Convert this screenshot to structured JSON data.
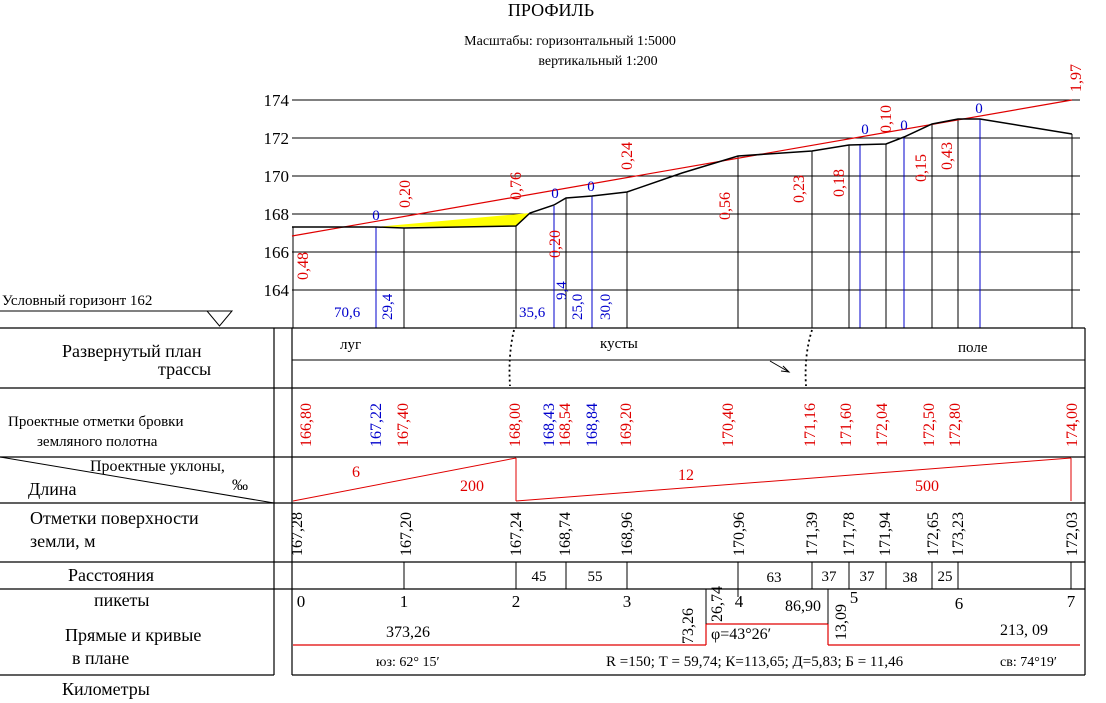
{
  "title": "ПРОФИЛЬ",
  "scales": {
    "horizontal": "Масштабы: горизонтальный  1:5000",
    "vertical": "вертикальный 1:200"
  },
  "datum_label": "Условный горизонт  162",
  "y_ticks": [
    "174",
    "172",
    "170",
    "168",
    "166",
    "164"
  ],
  "row_labels": {
    "plan_1": "Развернутый план",
    "plan_2": "трассы",
    "design_1": "Проектные отметки  бровки",
    "design_2": "земляного полотна",
    "slopes": "Проектные уклоны,",
    "permille": "‰",
    "length": "Длина",
    "surface_1": "Отметки поверхности",
    "surface_2": "земли, м",
    "distances": "Расстояния",
    "pickets": "пикеты",
    "curves_1": "Прямые и кривые",
    "curves_2": "в плане",
    "kilometers": "Километры"
  },
  "terrain": [
    "луг",
    "кусты",
    "поле"
  ],
  "design_marks": [
    {
      "text": "166,80",
      "color": "#e00000"
    },
    {
      "text": "167,22",
      "color": "#0000cc"
    },
    {
      "text": "167,40",
      "color": "#e00000"
    },
    {
      "text": "168,00",
      "color": "#e00000"
    },
    {
      "text": "168,43",
      "color": "#0000cc"
    },
    {
      "text": "168,54",
      "color": "#e00000"
    },
    {
      "text": "168,84",
      "color": "#0000cc"
    },
    {
      "text": "169,20",
      "color": "#e00000"
    },
    {
      "text": "170,40",
      "color": "#e00000"
    },
    {
      "text": "171,16",
      "color": "#e00000"
    },
    {
      "text": "171,60",
      "color": "#e00000"
    },
    {
      "text": "172,04",
      "color": "#e00000"
    },
    {
      "text": "172,50",
      "color": "#e00000"
    },
    {
      "text": "172,80",
      "color": "#e00000"
    },
    {
      "text": "174,00",
      "color": "#e00000"
    }
  ],
  "slopes": [
    {
      "grade": "6",
      "length": "200"
    },
    {
      "grade": "12",
      "length": "500"
    }
  ],
  "surface_marks": [
    "167,28",
    "167,20",
    "167,24",
    "168,74",
    "168,96",
    "170,96",
    "171,39",
    "171,78",
    "171,94",
    "172,65",
    "173,23",
    "172,03"
  ],
  "distances": [
    "45",
    "55",
    "63",
    "37",
    "37",
    "38",
    "25"
  ],
  "pickets": [
    "0",
    "1",
    "2",
    "3",
    "4",
    "5",
    "6",
    "7"
  ],
  "plan": {
    "straight_1": "373,26",
    "curve_start": "73,26",
    "curve_start_2": "26,74",
    "curve_mid": "86,90",
    "curve_end": "13,09",
    "angle": "φ=43°26′",
    "straight_2": "213, 09",
    "bearing_1": "юз: 62° 15′",
    "bearing_2": "св: 74°19′",
    "curve_params": "R =150; Т = 59,74; К=113,65; Д=5,83;  Б = 11,46"
  },
  "work_marks_red": [
    "0,48",
    "0,20",
    "0,76",
    "0,20",
    "0,24",
    "0,56",
    "0,23",
    "0,18",
    "0,10",
    "0,15",
    "0,43",
    "1,97"
  ],
  "zero_marks": [
    "0",
    "0",
    "0",
    "0",
    "0",
    "0"
  ],
  "distance_marks_blue": [
    "70,6",
    "29,4",
    "35,6",
    "9,4",
    "25,0",
    "30,0"
  ],
  "colors": {
    "design": "#e00000",
    "zero_points": "#0000cc",
    "fill": "#ffff00",
    "ground": "#000000"
  }
}
